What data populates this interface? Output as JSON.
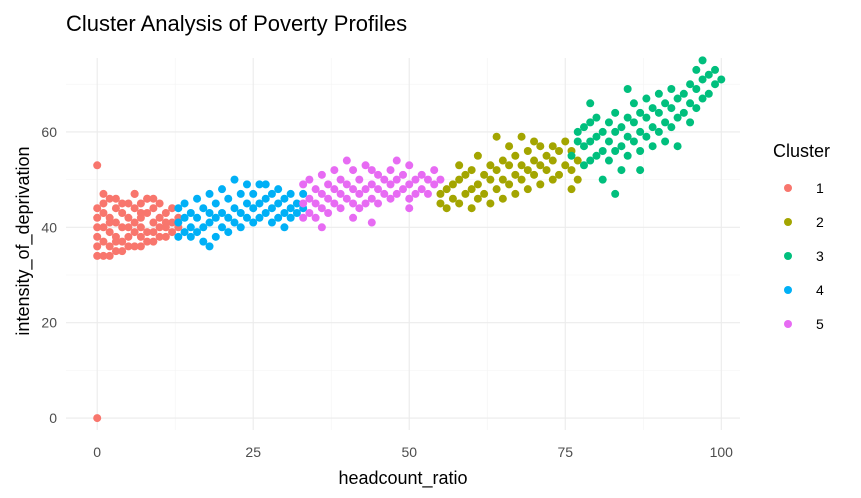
{
  "chart_data": {
    "type": "scatter",
    "title": "Cluster Analysis of Poverty Profiles",
    "xlabel": "headcount_ratio",
    "ylabel": "intensity_of_deprivation",
    "xlim": [
      -5,
      103
    ],
    "ylim": [
      -2.5,
      75.5
    ],
    "x_ticks": [
      0,
      25,
      50,
      75,
      100
    ],
    "y_ticks": [
      0,
      20,
      40,
      60
    ],
    "x_tick_labels": [
      "0",
      "25",
      "50",
      "75",
      "100"
    ],
    "y_tick_labels": [
      "0",
      "20",
      "40",
      "60"
    ],
    "grid": true,
    "legend": {
      "title": "Cluster",
      "position": "right"
    },
    "series": [
      {
        "name": "1",
        "color": "#F8766D",
        "points": [
          [
            0,
            0
          ],
          [
            0,
            53
          ],
          [
            0,
            34
          ],
          [
            0,
            36
          ],
          [
            0,
            38
          ],
          [
            0,
            40
          ],
          [
            0,
            42
          ],
          [
            0,
            44
          ],
          [
            1,
            34
          ],
          [
            1,
            37
          ],
          [
            1,
            40
          ],
          [
            1,
            43
          ],
          [
            1,
            45
          ],
          [
            2,
            34
          ],
          [
            2,
            36
          ],
          [
            2,
            39
          ],
          [
            2,
            42
          ],
          [
            2,
            46
          ],
          [
            3,
            35
          ],
          [
            3,
            38
          ],
          [
            3,
            41
          ],
          [
            3,
            44
          ],
          [
            3,
            46
          ],
          [
            4,
            35
          ],
          [
            4,
            37
          ],
          [
            4,
            40
          ],
          [
            4,
            43
          ],
          [
            5,
            36
          ],
          [
            5,
            38
          ],
          [
            5,
            42
          ],
          [
            5,
            45
          ],
          [
            6,
            36
          ],
          [
            6,
            39
          ],
          [
            6,
            41
          ],
          [
            6,
            44
          ],
          [
            6,
            47
          ],
          [
            7,
            36
          ],
          [
            7,
            38
          ],
          [
            7,
            40
          ],
          [
            7,
            42
          ],
          [
            7,
            45
          ],
          [
            8,
            37
          ],
          [
            8,
            39
          ],
          [
            8,
            43
          ],
          [
            8,
            46
          ],
          [
            9,
            37
          ],
          [
            9,
            39
          ],
          [
            9,
            41
          ],
          [
            9,
            44
          ],
          [
            10,
            38
          ],
          [
            10,
            40
          ],
          [
            10,
            42
          ],
          [
            10,
            45
          ],
          [
            11,
            38
          ],
          [
            11,
            40
          ],
          [
            11,
            43
          ],
          [
            12,
            39
          ],
          [
            12,
            41
          ],
          [
            12,
            44
          ],
          [
            13,
            40
          ],
          [
            13,
            42
          ],
          [
            6,
            47
          ],
          [
            8,
            46
          ],
          [
            1,
            47
          ],
          [
            2,
            41
          ],
          [
            3,
            37
          ],
          [
            4,
            45
          ],
          [
            5,
            40
          ],
          [
            7,
            43
          ],
          [
            9,
            46
          ],
          [
            11,
            41
          ]
        ]
      },
      {
        "name": "2",
        "color": "#A3A500",
        "points": [
          [
            55,
            45
          ],
          [
            55,
            47
          ],
          [
            56,
            44
          ],
          [
            56,
            48
          ],
          [
            57,
            46
          ],
          [
            57,
            49
          ],
          [
            58,
            45
          ],
          [
            58,
            50
          ],
          [
            59,
            47
          ],
          [
            59,
            51
          ],
          [
            60,
            44
          ],
          [
            60,
            48
          ],
          [
            60,
            52
          ],
          [
            61,
            46
          ],
          [
            61,
            49
          ],
          [
            62,
            47
          ],
          [
            62,
            51
          ],
          [
            63,
            45
          ],
          [
            63,
            50
          ],
          [
            63,
            53
          ],
          [
            64,
            48
          ],
          [
            64,
            52
          ],
          [
            65,
            46
          ],
          [
            65,
            50
          ],
          [
            65,
            54
          ],
          [
            66,
            49
          ],
          [
            66,
            53
          ],
          [
            67,
            47
          ],
          [
            67,
            51
          ],
          [
            67,
            55
          ],
          [
            68,
            50
          ],
          [
            68,
            53
          ],
          [
            68,
            59
          ],
          [
            69,
            48
          ],
          [
            69,
            52
          ],
          [
            69,
            56
          ],
          [
            70,
            51
          ],
          [
            70,
            54
          ],
          [
            71,
            49
          ],
          [
            71,
            53
          ],
          [
            71,
            57
          ],
          [
            72,
            52
          ],
          [
            72,
            55
          ],
          [
            73,
            50
          ],
          [
            73,
            54
          ],
          [
            73,
            57
          ],
          [
            74,
            51
          ],
          [
            74,
            56
          ],
          [
            75,
            53
          ],
          [
            75,
            58
          ],
          [
            76,
            48
          ],
          [
            76,
            52
          ],
          [
            76,
            56
          ],
          [
            77,
            50
          ],
          [
            77,
            54
          ],
          [
            64,
            59
          ],
          [
            66,
            57
          ],
          [
            70,
            58
          ],
          [
            58,
            53
          ],
          [
            61,
            55
          ]
        ]
      },
      {
        "name": "3",
        "color": "#00BF7D",
        "points": [
          [
            76,
            55
          ],
          [
            77,
            58
          ],
          [
            77,
            60
          ],
          [
            78,
            53
          ],
          [
            78,
            57
          ],
          [
            78,
            61
          ],
          [
            79,
            54
          ],
          [
            79,
            58
          ],
          [
            79,
            62
          ],
          [
            80,
            55
          ],
          [
            80,
            59
          ],
          [
            80,
            63
          ],
          [
            81,
            56
          ],
          [
            81,
            60
          ],
          [
            82,
            54
          ],
          [
            82,
            58
          ],
          [
            82,
            62
          ],
          [
            83,
            47
          ],
          [
            83,
            56
          ],
          [
            83,
            60
          ],
          [
            83,
            64
          ],
          [
            84,
            57
          ],
          [
            84,
            61
          ],
          [
            85,
            55
          ],
          [
            85,
            59
          ],
          [
            85,
            63
          ],
          [
            85,
            69
          ],
          [
            86,
            58
          ],
          [
            86,
            62
          ],
          [
            86,
            66
          ],
          [
            87,
            56
          ],
          [
            87,
            60
          ],
          [
            87,
            64
          ],
          [
            88,
            59
          ],
          [
            88,
            63
          ],
          [
            88,
            67
          ],
          [
            89,
            57
          ],
          [
            89,
            61
          ],
          [
            89,
            65
          ],
          [
            90,
            60
          ],
          [
            90,
            64
          ],
          [
            90,
            68
          ],
          [
            91,
            58
          ],
          [
            91,
            62
          ],
          [
            91,
            66
          ],
          [
            92,
            61
          ],
          [
            92,
            65
          ],
          [
            92,
            69
          ],
          [
            93,
            63
          ],
          [
            93,
            67
          ],
          [
            94,
            64
          ],
          [
            94,
            68
          ],
          [
            95,
            66
          ],
          [
            95,
            70
          ],
          [
            96,
            65
          ],
          [
            96,
            69
          ],
          [
            96,
            73
          ],
          [
            97,
            67
          ],
          [
            97,
            71
          ],
          [
            97,
            75
          ],
          [
            98,
            68
          ],
          [
            98,
            72
          ],
          [
            99,
            70
          ],
          [
            99,
            73
          ],
          [
            100,
            71
          ],
          [
            79,
            66
          ],
          [
            81,
            50
          ],
          [
            84,
            52
          ],
          [
            93,
            57
          ],
          [
            87,
            52
          ],
          [
            95,
            62
          ]
        ]
      },
      {
        "name": "4",
        "color": "#00B0F6",
        "points": [
          [
            13,
            38
          ],
          [
            13,
            41
          ],
          [
            13,
            44
          ],
          [
            14,
            39
          ],
          [
            14,
            42
          ],
          [
            14,
            45
          ],
          [
            15,
            38
          ],
          [
            15,
            40
          ],
          [
            15,
            43
          ],
          [
            16,
            39
          ],
          [
            16,
            42
          ],
          [
            16,
            46
          ],
          [
            17,
            37
          ],
          [
            17,
            40
          ],
          [
            17,
            44
          ],
          [
            18,
            41
          ],
          [
            18,
            43
          ],
          [
            18,
            47
          ],
          [
            19,
            38
          ],
          [
            19,
            42
          ],
          [
            19,
            45
          ],
          [
            20,
            40
          ],
          [
            20,
            43
          ],
          [
            20,
            48
          ],
          [
            21,
            39
          ],
          [
            21,
            42
          ],
          [
            21,
            46
          ],
          [
            22,
            41
          ],
          [
            22,
            44
          ],
          [
            23,
            40
          ],
          [
            23,
            43
          ],
          [
            23,
            47
          ],
          [
            24,
            42
          ],
          [
            24,
            45
          ],
          [
            24,
            49
          ],
          [
            25,
            41
          ],
          [
            25,
            44
          ],
          [
            25,
            47
          ],
          [
            26,
            42
          ],
          [
            26,
            45
          ],
          [
            27,
            43
          ],
          [
            27,
            46
          ],
          [
            27,
            49
          ],
          [
            28,
            41
          ],
          [
            28,
            44
          ],
          [
            28,
            47
          ],
          [
            29,
            42
          ],
          [
            29,
            45
          ],
          [
            29,
            48
          ],
          [
            30,
            43
          ],
          [
            30,
            46
          ],
          [
            31,
            42
          ],
          [
            31,
            44
          ],
          [
            31,
            47
          ],
          [
            32,
            43
          ],
          [
            32,
            45
          ],
          [
            33,
            44
          ],
          [
            33,
            47
          ],
          [
            22,
            50
          ],
          [
            26,
            49
          ],
          [
            18,
            36
          ],
          [
            30,
            40
          ]
        ]
      },
      {
        "name": "5",
        "color": "#E76BF3",
        "points": [
          [
            33,
            42
          ],
          [
            33,
            45
          ],
          [
            33,
            49
          ],
          [
            34,
            43
          ],
          [
            34,
            46
          ],
          [
            34,
            50
          ],
          [
            35,
            42
          ],
          [
            35,
            45
          ],
          [
            35,
            48
          ],
          [
            36,
            44
          ],
          [
            36,
            47
          ],
          [
            36,
            51
          ],
          [
            37,
            43
          ],
          [
            37,
            46
          ],
          [
            37,
            49
          ],
          [
            38,
            45
          ],
          [
            38,
            48
          ],
          [
            38,
            52
          ],
          [
            39,
            44
          ],
          [
            39,
            47
          ],
          [
            39,
            50
          ],
          [
            40,
            46
          ],
          [
            40,
            49
          ],
          [
            41,
            42
          ],
          [
            41,
            45
          ],
          [
            41,
            48
          ],
          [
            41,
            52
          ],
          [
            42,
            44
          ],
          [
            42,
            47
          ],
          [
            42,
            50
          ],
          [
            43,
            45
          ],
          [
            43,
            48
          ],
          [
            43,
            53
          ],
          [
            44,
            46
          ],
          [
            44,
            49
          ],
          [
            44,
            52
          ],
          [
            45,
            45
          ],
          [
            45,
            48
          ],
          [
            45,
            51
          ],
          [
            46,
            47
          ],
          [
            46,
            50
          ],
          [
            47,
            46
          ],
          [
            47,
            49
          ],
          [
            47,
            52
          ],
          [
            48,
            47
          ],
          [
            48,
            50
          ],
          [
            48,
            54
          ],
          [
            49,
            48
          ],
          [
            49,
            51
          ],
          [
            50,
            46
          ],
          [
            50,
            49
          ],
          [
            50,
            53
          ],
          [
            51,
            47
          ],
          [
            51,
            50
          ],
          [
            52,
            48
          ],
          [
            52,
            51
          ],
          [
            53,
            47
          ],
          [
            53,
            50
          ],
          [
            54,
            49
          ],
          [
            54,
            52
          ],
          [
            55,
            50
          ],
          [
            44,
            41
          ],
          [
            36,
            40
          ],
          [
            40,
            54
          ],
          [
            50,
            44
          ]
        ]
      }
    ]
  }
}
